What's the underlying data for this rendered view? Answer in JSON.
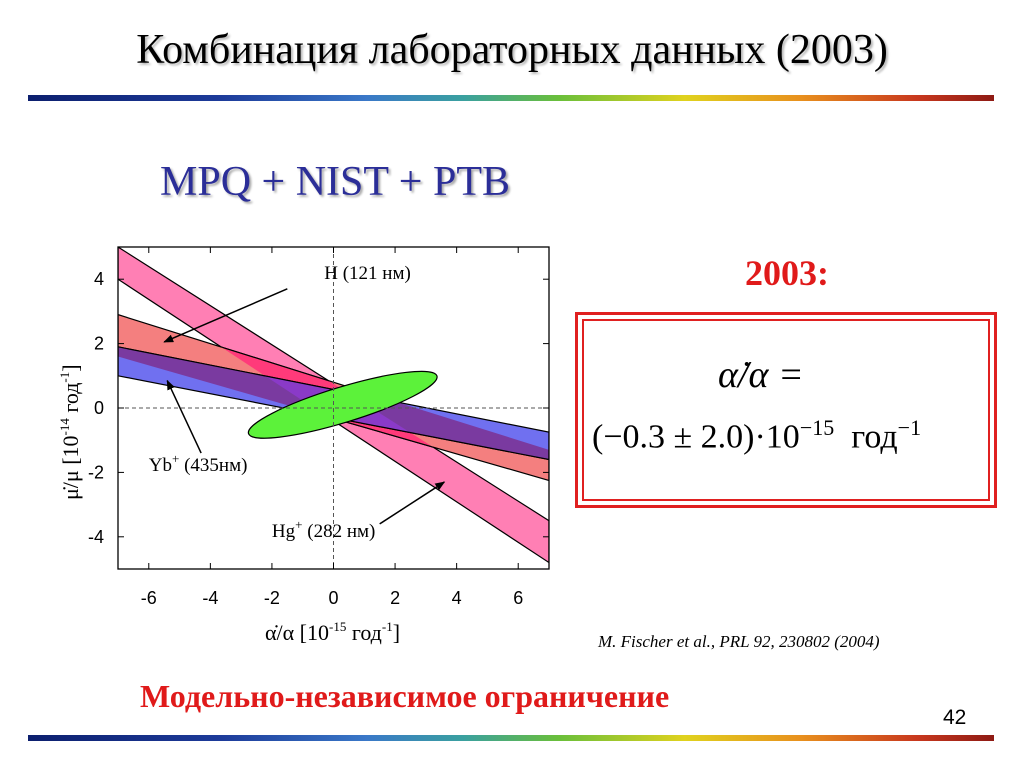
{
  "slide": {
    "title": "Комбинация лабораторных данных (2003)",
    "subtitle": "MPQ + NIST + PTB",
    "year_label": "2003:",
    "formula_line1": "α̇/α =",
    "formula_line2_main": "(−0.3 ± 2.0)·10",
    "formula_line2_exp": "−15",
    "formula_line2_unit": "год",
    "formula_line2_unit_exp": "−1",
    "citation": "M. Fischer et al., PRL 92, 230802 (2004)",
    "footer": "Модельно-независимое ограничение",
    "page_number": "42"
  },
  "colors": {
    "title_text": "#000000",
    "subtitle_text": "#2b2e98",
    "accent_red": "#e01a1a",
    "band_hg": "#ff7fb4",
    "band_h": "#f47f7f",
    "band_yb": "#7070f0",
    "overlap_h_hg": "#ff3a7a",
    "overlap_yb_hg": "#8a3ac8",
    "overlap_h_yb": "#7a3aa0",
    "ellipse": "#5cf23a"
  },
  "chart_data": {
    "type": "area",
    "xlabel_main": "α̇/α",
    "xlabel_unit": "[10",
    "xlabel_exp": "-15",
    "xlabel_unit2": "год",
    "xlabel_exp2": "-1",
    "xlabel_close": "]",
    "ylabel_main": "μ̇/μ",
    "ylabel_unit": "[10",
    "ylabel_exp": "-14",
    "ylabel_unit2": "год",
    "ylabel_exp2": "-1",
    "ylabel_close": "]",
    "xlim": [
      -7,
      7
    ],
    "ylim": [
      -5,
      5
    ],
    "x_ticks": [
      -6,
      -4,
      -2,
      0,
      2,
      4,
      6
    ],
    "y_ticks": [
      -4,
      -2,
      0,
      2,
      4
    ],
    "x_tick_labels": [
      "-6",
      "-4",
      "-2",
      "0",
      "2",
      "4",
      "6"
    ],
    "y_tick_labels": [
      "-4",
      "-2",
      "0",
      "2",
      "4"
    ],
    "zero_lines": true,
    "bands": [
      {
        "key": "hg",
        "upper_left": [
          -7,
          5.0
        ],
        "upper_right": [
          7,
          -3.5
        ],
        "lower_left": [
          -7,
          4.0
        ],
        "lower_right": [
          7,
          -4.8
        ]
      },
      {
        "key": "h",
        "upper_left": [
          -7,
          2.9
        ],
        "upper_right": [
          7,
          -1.3
        ],
        "lower_left": [
          -7,
          1.6
        ],
        "lower_right": [
          7,
          -2.25
        ]
      },
      {
        "key": "yb",
        "upper_left": [
          -7,
          1.9
        ],
        "upper_right": [
          7,
          -0.75
        ],
        "lower_left": [
          -7,
          1.0
        ],
        "lower_right": [
          7,
          -1.6
        ]
      }
    ],
    "ellipse": {
      "cx": 0.3,
      "cy": 0.1,
      "rx": 3.2,
      "ry": 0.55,
      "angle_deg": -17
    },
    "annotations": [
      {
        "name": "h-label",
        "text": "H (121 нм)",
        "text_at": [
          -0.3,
          4.0
        ],
        "arrow_from": [
          -1.5,
          3.7
        ],
        "arrow_to": [
          -5.5,
          2.05
        ]
      },
      {
        "name": "yb-label",
        "text": "Yb",
        "sup": "+",
        "tail": " (435нм)",
        "text_at": [
          -6.0,
          -1.95
        ],
        "arrow_from": [
          -4.3,
          -1.4
        ],
        "arrow_to": [
          -5.4,
          0.85
        ]
      },
      {
        "name": "hg-label",
        "text": "Hg",
        "sup": "+",
        "tail": " (282 нм)",
        "text_at": [
          -2.0,
          -4.0
        ],
        "arrow_from": [
          1.5,
          -3.6
        ],
        "arrow_to": [
          3.6,
          -2.3
        ]
      }
    ]
  }
}
